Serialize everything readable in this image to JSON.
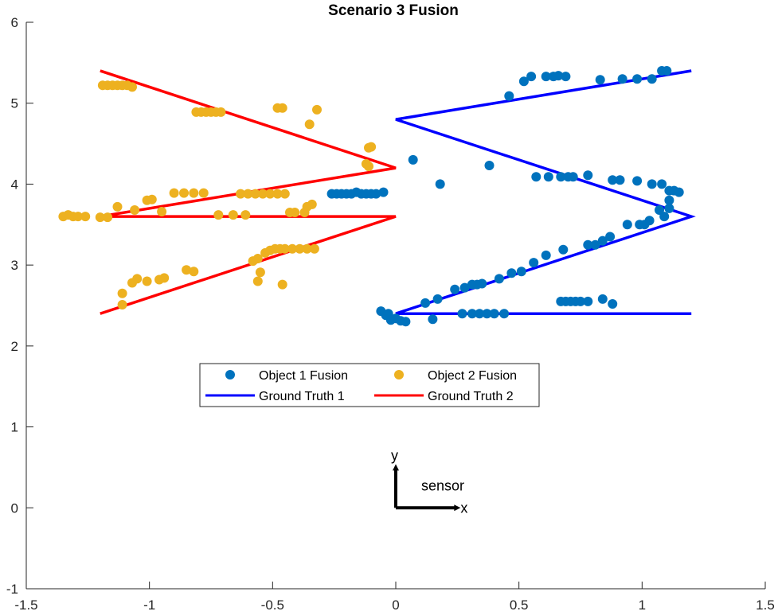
{
  "chart_data": {
    "type": "scatter",
    "title": "Scenario 3 Fusion",
    "xlabel": "",
    "ylabel": "",
    "xlim": [
      -1.5,
      1.5
    ],
    "ylim": [
      -1,
      6
    ],
    "x_ticks": [
      -1.5,
      -1,
      -0.5,
      0,
      0.5,
      1,
      1.5
    ],
    "x_tick_labels": [
      "-1.5",
      "-1",
      "-0.5",
      "0",
      "0.5",
      "1",
      "1.5"
    ],
    "y_ticks": [
      -1,
      0,
      1,
      2,
      3,
      4,
      5,
      6
    ],
    "y_tick_labels": [
      "-1",
      "0",
      "1",
      "2",
      "3",
      "4",
      "5",
      "6"
    ],
    "grid": false,
    "legend_position": "center",
    "colors": {
      "object1": "#0072BD",
      "object2": "#EDB120",
      "truth1": "#0000FF",
      "truth2": "#FF0000",
      "axis": "#262626"
    },
    "series": [
      {
        "name": "Object 1 Fusion",
        "kind": "scatter",
        "color": "#0072BD",
        "points": [
          [
            -0.26,
            3.88
          ],
          [
            -0.24,
            3.88
          ],
          [
            -0.22,
            3.88
          ],
          [
            -0.2,
            3.88
          ],
          [
            -0.18,
            3.88
          ],
          [
            -0.16,
            3.9
          ],
          [
            -0.14,
            3.88
          ],
          [
            -0.12,
            3.88
          ],
          [
            -0.1,
            3.88
          ],
          [
            -0.08,
            3.88
          ],
          [
            -0.05,
            3.9
          ],
          [
            0.07,
            4.3
          ],
          [
            0.18,
            4.0
          ],
          [
            0.38,
            4.23
          ],
          [
            0.46,
            5.09
          ],
          [
            0.52,
            5.27
          ],
          [
            0.55,
            5.33
          ],
          [
            0.61,
            5.33
          ],
          [
            0.64,
            5.33
          ],
          [
            0.66,
            5.34
          ],
          [
            0.69,
            5.33
          ],
          [
            0.83,
            5.29
          ],
          [
            0.92,
            5.3
          ],
          [
            0.98,
            5.3
          ],
          [
            1.04,
            5.3
          ],
          [
            1.08,
            5.4
          ],
          [
            1.1,
            5.4
          ],
          [
            0.57,
            4.09
          ],
          [
            0.62,
            4.09
          ],
          [
            0.67,
            4.09
          ],
          [
            0.7,
            4.09
          ],
          [
            0.72,
            4.09
          ],
          [
            0.78,
            4.11
          ],
          [
            0.88,
            4.05
          ],
          [
            0.91,
            4.05
          ],
          [
            0.98,
            4.04
          ],
          [
            1.04,
            4.0
          ],
          [
            1.08,
            4.0
          ],
          [
            1.11,
            3.92
          ],
          [
            1.13,
            3.92
          ],
          [
            1.15,
            3.9
          ],
          [
            1.07,
            3.68
          ],
          [
            1.09,
            3.6
          ],
          [
            1.11,
            3.7
          ],
          [
            1.11,
            3.8
          ],
          [
            1.03,
            3.55
          ],
          [
            1.01,
            3.5
          ],
          [
            0.99,
            3.5
          ],
          [
            0.94,
            3.5
          ],
          [
            0.87,
            3.35
          ],
          [
            0.84,
            3.3
          ],
          [
            0.81,
            3.25
          ],
          [
            0.78,
            3.25
          ],
          [
            0.68,
            3.19
          ],
          [
            0.61,
            3.12
          ],
          [
            0.56,
            3.03
          ],
          [
            0.51,
            2.92
          ],
          [
            0.47,
            2.9
          ],
          [
            0.42,
            2.83
          ],
          [
            0.35,
            2.77
          ],
          [
            0.33,
            2.76
          ],
          [
            0.31,
            2.76
          ],
          [
            0.28,
            2.72
          ],
          [
            0.24,
            2.7
          ],
          [
            0.17,
            2.58
          ],
          [
            0.12,
            2.53
          ],
          [
            -0.06,
            2.43
          ],
          [
            -0.04,
            2.38
          ],
          [
            -0.02,
            2.32
          ],
          [
            0.0,
            2.34
          ],
          [
            0.02,
            2.31
          ],
          [
            0.04,
            2.3
          ],
          [
            -0.03,
            2.4
          ],
          [
            0.15,
            2.33
          ],
          [
            0.27,
            2.4
          ],
          [
            0.31,
            2.4
          ],
          [
            0.34,
            2.4
          ],
          [
            0.37,
            2.4
          ],
          [
            0.4,
            2.4
          ],
          [
            0.44,
            2.4
          ],
          [
            0.67,
            2.55
          ],
          [
            0.69,
            2.55
          ],
          [
            0.71,
            2.55
          ],
          [
            0.73,
            2.55
          ],
          [
            0.75,
            2.55
          ],
          [
            0.78,
            2.55
          ],
          [
            0.84,
            2.58
          ],
          [
            0.88,
            2.52
          ]
        ]
      },
      {
        "name": "Object 2 Fusion",
        "kind": "scatter",
        "color": "#EDB120",
        "points": [
          [
            -1.19,
            5.22
          ],
          [
            -1.17,
            5.22
          ],
          [
            -1.15,
            5.22
          ],
          [
            -1.13,
            5.22
          ],
          [
            -1.11,
            5.22
          ],
          [
            -1.09,
            5.22
          ],
          [
            -1.07,
            5.2
          ],
          [
            -0.81,
            4.89
          ],
          [
            -0.79,
            4.89
          ],
          [
            -0.77,
            4.89
          ],
          [
            -0.75,
            4.89
          ],
          [
            -0.73,
            4.89
          ],
          [
            -0.71,
            4.89
          ],
          [
            -0.48,
            4.94
          ],
          [
            -0.46,
            4.94
          ],
          [
            -0.35,
            4.74
          ],
          [
            -0.32,
            4.92
          ],
          [
            -0.11,
            4.45
          ],
          [
            -0.1,
            4.46
          ],
          [
            -0.12,
            4.25
          ],
          [
            -0.11,
            4.22
          ],
          [
            -1.35,
            3.6
          ],
          [
            -1.33,
            3.62
          ],
          [
            -1.31,
            3.6
          ],
          [
            -1.29,
            3.6
          ],
          [
            -1.26,
            3.6
          ],
          [
            -1.2,
            3.59
          ],
          [
            -1.17,
            3.59
          ],
          [
            -1.13,
            3.72
          ],
          [
            -1.06,
            3.68
          ],
          [
            -1.01,
            3.8
          ],
          [
            -0.99,
            3.81
          ],
          [
            -0.95,
            3.66
          ],
          [
            -0.9,
            3.89
          ],
          [
            -0.86,
            3.89
          ],
          [
            -0.82,
            3.89
          ],
          [
            -0.78,
            3.89
          ],
          [
            -0.72,
            3.62
          ],
          [
            -0.66,
            3.62
          ],
          [
            -0.61,
            3.62
          ],
          [
            -0.63,
            3.88
          ],
          [
            -0.6,
            3.88
          ],
          [
            -0.57,
            3.88
          ],
          [
            -0.54,
            3.88
          ],
          [
            -0.51,
            3.88
          ],
          [
            -0.48,
            3.88
          ],
          [
            -0.45,
            3.88
          ],
          [
            -0.43,
            3.65
          ],
          [
            -0.41,
            3.65
          ],
          [
            -0.36,
            3.72
          ],
          [
            -0.34,
            3.75
          ],
          [
            -0.37,
            3.65
          ],
          [
            -1.11,
            2.51
          ],
          [
            -1.11,
            2.65
          ],
          [
            -1.07,
            2.78
          ],
          [
            -1.05,
            2.83
          ],
          [
            -1.01,
            2.8
          ],
          [
            -0.96,
            2.82
          ],
          [
            -0.94,
            2.84
          ],
          [
            -0.85,
            2.94
          ],
          [
            -0.82,
            2.92
          ],
          [
            -0.58,
            3.05
          ],
          [
            -0.56,
            3.08
          ],
          [
            -0.53,
            3.15
          ],
          [
            -0.51,
            3.18
          ],
          [
            -0.49,
            3.2
          ],
          [
            -0.47,
            3.2
          ],
          [
            -0.45,
            3.2
          ],
          [
            -0.42,
            3.2
          ],
          [
            -0.39,
            3.2
          ],
          [
            -0.36,
            3.2
          ],
          [
            -0.33,
            3.2
          ],
          [
            -0.55,
            2.91
          ],
          [
            -0.56,
            2.8
          ],
          [
            -0.46,
            2.76
          ]
        ]
      },
      {
        "name": "Ground Truth 1",
        "kind": "line",
        "color": "#0000FF",
        "points": [
          [
            1.2,
            2.4
          ],
          [
            0.0,
            2.4
          ],
          [
            1.2,
            3.6
          ],
          [
            0.0,
            4.8
          ],
          [
            1.2,
            5.4
          ]
        ]
      },
      {
        "name": "Ground Truth 2",
        "kind": "line",
        "color": "#FF0000",
        "points": [
          [
            -1.2,
            2.4
          ],
          [
            0.0,
            3.6
          ],
          [
            -1.2,
            3.6
          ],
          [
            0.0,
            4.2
          ],
          [
            -1.2,
            5.4
          ]
        ]
      }
    ],
    "annotations": {
      "y_label": "y",
      "x_label": "x",
      "sensor_label": "sensor",
      "sensor_origin": [
        0,
        0
      ],
      "arrow_length_x": 0.25,
      "arrow_length_y": 0.5
    }
  }
}
